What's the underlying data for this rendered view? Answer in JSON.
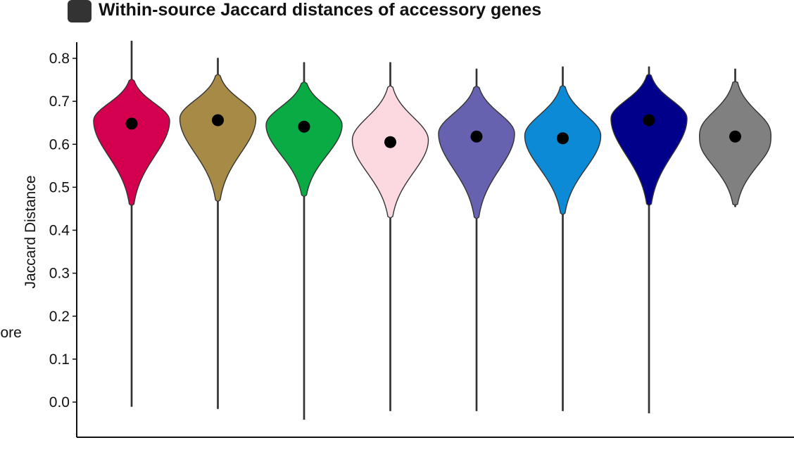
{
  "chart_data": {
    "type": "violin",
    "title": "Within-source Jaccard distances of accessory genes",
    "panel_badge_color": "#333333",
    "ylabel": "Jaccard Distance",
    "xlabel": "",
    "ylim": [
      0.0,
      0.85
    ],
    "yticks": [
      "0.0",
      "0.1",
      "0.2",
      "0.3",
      "0.4",
      "0.5",
      "0.6",
      "0.7",
      "0.8"
    ],
    "grid": false,
    "legend": "none",
    "cut_text": "core",
    "median_marker_color": "#000000",
    "series": [
      {
        "color": "#d4004f",
        "min": -0.01,
        "max": 0.84,
        "body_low": 0.46,
        "body_high": 0.75,
        "mode": 0.655,
        "median": 0.648
      },
      {
        "color": "#a68a45",
        "min": -0.015,
        "max": 0.8,
        "body_low": 0.47,
        "body_high": 0.76,
        "mode": 0.66,
        "median": 0.656
      },
      {
        "color": "#0aaa45",
        "min": -0.04,
        "max": 0.79,
        "body_low": 0.48,
        "body_high": 0.745,
        "mode": 0.645,
        "median": 0.641
      },
      {
        "color": "#fcd8e0",
        "min": -0.02,
        "max": 0.79,
        "body_low": 0.43,
        "body_high": 0.735,
        "mode": 0.61,
        "median": 0.605
      },
      {
        "color": "#6662b0",
        "min": -0.02,
        "max": 0.775,
        "body_low": 0.43,
        "body_high": 0.735,
        "mode": 0.625,
        "median": 0.618
      },
      {
        "color": "#0c8ad6",
        "min": -0.02,
        "max": 0.78,
        "body_low": 0.44,
        "body_high": 0.735,
        "mode": 0.62,
        "median": 0.614
      },
      {
        "color": "#00008a",
        "min": -0.025,
        "max": 0.78,
        "body_low": 0.46,
        "body_high": 0.76,
        "mode": 0.66,
        "median": 0.656
      },
      {
        "color": "#808080",
        "min": 0.455,
        "max": 0.775,
        "body_low": 0.46,
        "body_high": 0.745,
        "mode": 0.62,
        "median": 0.618,
        "bimodal": true
      }
    ]
  }
}
